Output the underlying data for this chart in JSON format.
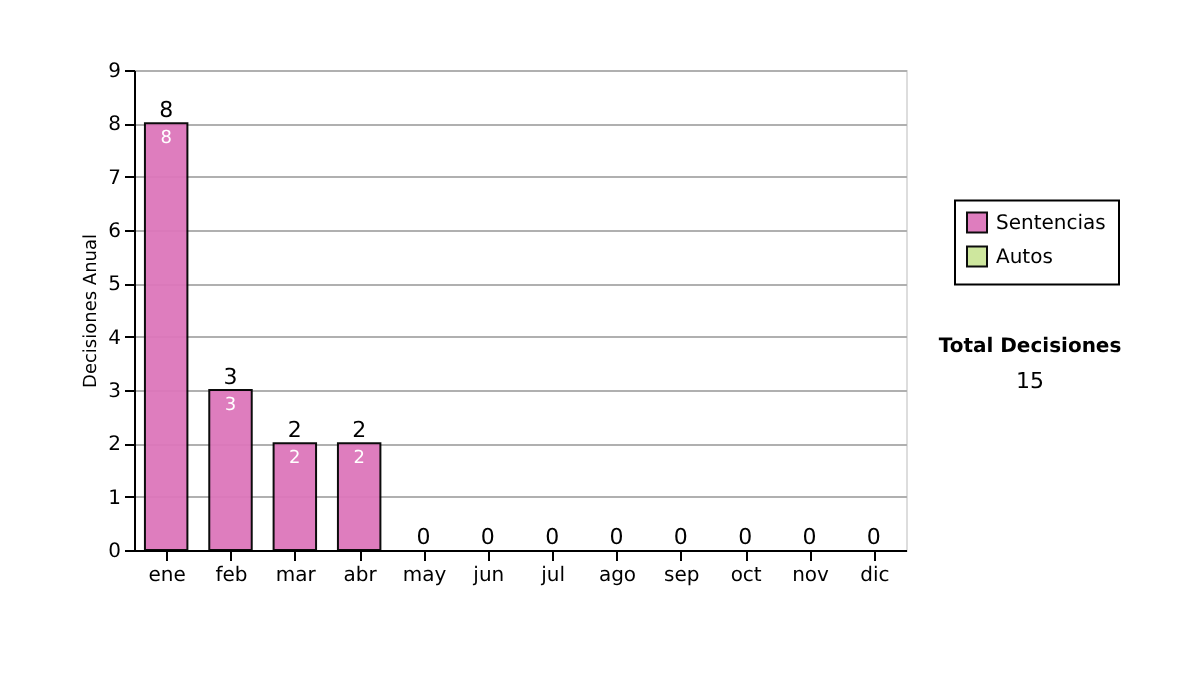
{
  "chart_data": {
    "type": "bar",
    "stacked": true,
    "ylabel": "Decisiones Anual",
    "categories": [
      "ene",
      "feb",
      "mar",
      "abr",
      "may",
      "jun",
      "jul",
      "ago",
      "sep",
      "oct",
      "nov",
      "dic"
    ],
    "series": [
      {
        "name": "Sentencias",
        "color": "#dd77bb",
        "values": [
          8,
          3,
          2,
          2,
          0,
          0,
          0,
          0,
          0,
          0,
          0,
          0
        ],
        "value_labels": [
          "8",
          "3",
          "2",
          "2",
          null,
          null,
          null,
          null,
          null,
          null,
          null,
          null
        ]
      },
      {
        "name": "Autos",
        "color": "#cce699",
        "values": [
          0,
          0,
          0,
          0,
          0,
          0,
          0,
          0,
          0,
          0,
          0,
          0
        ]
      }
    ],
    "totals": [
      "8",
      "3",
      "2",
      "2",
      "0",
      "0",
      "0",
      "0",
      "0",
      "0",
      "0",
      "0"
    ],
    "ylim": [
      0,
      9
    ],
    "yticks": [
      0,
      1,
      2,
      3,
      4,
      5,
      6,
      7,
      8,
      9
    ],
    "grid": "y",
    "legend": "right",
    "annotations": [
      "Total Decisiones",
      "15"
    ]
  }
}
